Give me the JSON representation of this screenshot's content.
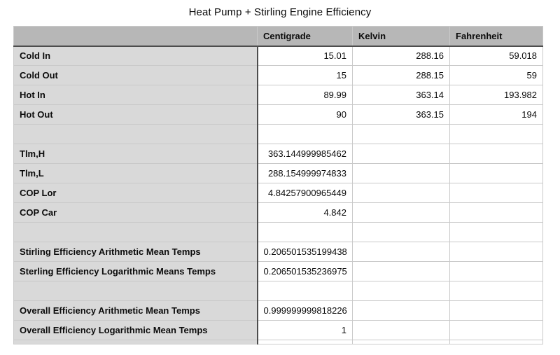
{
  "title": "Heat Pump + Stirling Engine Efficiency",
  "table": {
    "columns": [
      "",
      "Centigrade",
      "Kelvin",
      "Fahrenheit"
    ],
    "rows": [
      {
        "label": "Cold In",
        "centigrade": "15.01",
        "kelvin": "288.16",
        "fahrenheit": "59.018"
      },
      {
        "label": "Cold Out",
        "centigrade": "15",
        "kelvin": "288.15",
        "fahrenheit": "59"
      },
      {
        "label": "Hot In",
        "centigrade": "89.99",
        "kelvin": "363.14",
        "fahrenheit": "193.982"
      },
      {
        "label": "Hot Out",
        "centigrade": "90",
        "kelvin": "363.15",
        "fahrenheit": "194"
      },
      {
        "label": "",
        "centigrade": "",
        "kelvin": "",
        "fahrenheit": ""
      },
      {
        "label": "Tlm,H",
        "centigrade": "363.144999985462",
        "kelvin": "",
        "fahrenheit": ""
      },
      {
        "label": "Tlm,L",
        "centigrade": "288.154999974833",
        "kelvin": "",
        "fahrenheit": ""
      },
      {
        "label": "COP Lor",
        "centigrade": "4.84257900965449",
        "kelvin": "",
        "fahrenheit": ""
      },
      {
        "label": "COP Car",
        "centigrade": "4.842",
        "kelvin": "",
        "fahrenheit": ""
      },
      {
        "label": "",
        "centigrade": "",
        "kelvin": "",
        "fahrenheit": ""
      },
      {
        "label": "Stirling Efficiency Arithmetic Mean Temps",
        "centigrade": "0.206501535199438",
        "kelvin": "",
        "fahrenheit": ""
      },
      {
        "label": "Sterling Efficiency Logarithmic Means Temps",
        "centigrade": "0.206501535236975",
        "kelvin": "",
        "fahrenheit": ""
      },
      {
        "label": "",
        "centigrade": "",
        "kelvin": "",
        "fahrenheit": ""
      },
      {
        "label": "Overall Efficiency Arithmetic Mean Temps",
        "centigrade": "0.999999999818226",
        "kelvin": "",
        "fahrenheit": ""
      },
      {
        "label": "Overall Efficiency Logarithmic Mean Temps",
        "centigrade": "1",
        "kelvin": "",
        "fahrenheit": ""
      }
    ]
  },
  "colors": {
    "header_fill": "#b7b7b7",
    "label_fill": "#d9d9d9",
    "border_light": "#c9c9c9",
    "border_dark": "#4d4d4d",
    "text": "#0b0b0b",
    "background": "#ffffff"
  }
}
